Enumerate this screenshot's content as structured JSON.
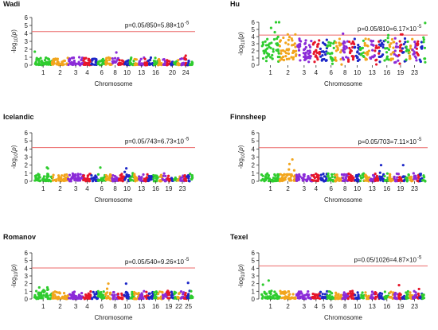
{
  "figure": {
    "xlabel": "Chromosome",
    "ylabel": "-log10(p)",
    "threshold_color": "#ec6a6a",
    "chromosome_palette": [
      "#2ecc2e",
      "#f2a51c",
      "#8b2bd8",
      "#e6162a",
      "#1c27c8"
    ]
  },
  "chart_data": [
    {
      "type": "scatter",
      "subtype": "manhattan",
      "title": "Wadi",
      "threshold_label": "p=0.05/850=5.88×10",
      "threshold_exponent": "-5",
      "threshold": 4.23,
      "ylim": [
        0,
        6
      ],
      "yticks": [
        0,
        1,
        2,
        3,
        4,
        5,
        6
      ],
      "n_chromosomes": 26,
      "xtick_labels": [
        "1",
        "2",
        "3",
        "4",
        "6",
        "8",
        "10",
        "13",
        "16",
        "20",
        "24"
      ],
      "xtick_chromosomes": [
        1,
        2,
        3,
        4,
        6,
        8,
        10,
        13,
        16,
        20,
        24
      ],
      "peaks": [
        {
          "chromosome": 1,
          "value": 1.7
        },
        {
          "chromosome": 8,
          "value": 1.6
        },
        {
          "chromosome": 24,
          "value": 1.2
        }
      ]
    },
    {
      "type": "scatter",
      "subtype": "manhattan",
      "title": "Hu",
      "threshold_label": "p=0.05/810=6.17×10",
      "threshold_exponent": "-5",
      "threshold": 4.21,
      "ylim": [
        0,
        6
      ],
      "yticks": [
        0,
        1,
        2,
        3,
        4,
        5,
        6
      ],
      "n_chromosomes": 26,
      "xtick_labels": [
        "1",
        "2",
        "3",
        "4",
        "6",
        "8",
        "10",
        "13",
        "16",
        "19",
        "23"
      ],
      "xtick_chromosomes": [
        1,
        2,
        3,
        4,
        6,
        8,
        10,
        13,
        16,
        19,
        23
      ],
      "peaks": [
        {
          "chromosome": 1,
          "value": 6.1
        },
        {
          "chromosome": 2,
          "value": 4.3
        },
        {
          "chromosome": 8,
          "value": 4.4
        },
        {
          "chromosome": 16,
          "value": 4.2
        },
        {
          "chromosome": 19,
          "value": 4.3
        },
        {
          "chromosome": 26,
          "value": 5.9
        }
      ]
    },
    {
      "type": "scatter",
      "subtype": "manhattan",
      "title": "Icelandic",
      "threshold_label": "p=0.05/743=6.73×10",
      "threshold_exponent": "-5",
      "threshold": 4.17,
      "ylim": [
        0,
        6
      ],
      "yticks": [
        0,
        1,
        2,
        3,
        4,
        5,
        6
      ],
      "n_chromosomes": 26,
      "xtick_labels": [
        "1",
        "2",
        "3",
        "4",
        "6",
        "8",
        "10",
        "13",
        "16",
        "19",
        "23"
      ],
      "xtick_chromosomes": [
        1,
        2,
        3,
        4,
        6,
        8,
        10,
        13,
        16,
        19,
        23
      ],
      "peaks": [
        {
          "chromosome": 1,
          "value": 1.7
        },
        {
          "chromosome": 6,
          "value": 1.7
        },
        {
          "chromosome": 10,
          "value": 1.6
        }
      ]
    },
    {
      "type": "scatter",
      "subtype": "manhattan",
      "title": "Finnsheep",
      "threshold_label": "p=0.05/703=7.11×10",
      "threshold_exponent": "-5",
      "threshold": 4.15,
      "ylim": [
        0,
        6
      ],
      "yticks": [
        0,
        1,
        2,
        3,
        4,
        5,
        6
      ],
      "n_chromosomes": 26,
      "xtick_labels": [
        "1",
        "2",
        "3",
        "4",
        "6",
        "8",
        "10",
        "13",
        "16",
        "19",
        "23"
      ],
      "xtick_chromosomes": [
        1,
        2,
        3,
        4,
        6,
        8,
        10,
        13,
        16,
        19,
        23
      ],
      "peaks": [
        {
          "chromosome": 2,
          "value": 2.7
        },
        {
          "chromosome": 15,
          "value": 2.0
        },
        {
          "chromosome": 20,
          "value": 2.0
        }
      ]
    },
    {
      "type": "scatter",
      "subtype": "manhattan",
      "title": "Romanov",
      "threshold_label": "p=0.05/540=9.26×10",
      "threshold_exponent": "-5",
      "threshold": 4.03,
      "ylim": [
        0,
        6
      ],
      "yticks": [
        0,
        1,
        2,
        3,
        4,
        5,
        6
      ],
      "n_chromosomes": 26,
      "xtick_labels": [
        "1",
        "2",
        "3",
        "4",
        "6",
        "8",
        "10",
        "13",
        "16",
        "19",
        "22",
        "25"
      ],
      "xtick_chromosomes": [
        1,
        2,
        3,
        4,
        6,
        8,
        10,
        13,
        16,
        19,
        22,
        25
      ],
      "peaks": [
        {
          "chromosome": 1,
          "value": 1.5
        },
        {
          "chromosome": 7,
          "value": 2.0
        },
        {
          "chromosome": 10,
          "value": 2.0
        },
        {
          "chromosome": 25,
          "value": 2.1
        }
      ]
    },
    {
      "type": "scatter",
      "subtype": "manhattan",
      "title": "Texel",
      "threshold_label": "p=0.05/1026=4.87×10",
      "threshold_exponent": "-5",
      "threshold": 4.31,
      "ylim": [
        0,
        6
      ],
      "yticks": [
        0,
        1,
        2,
        3,
        4,
        5,
        6
      ],
      "n_chromosomes": 26,
      "xtick_labels": [
        "1",
        "2",
        "3",
        "4",
        "5",
        "6",
        "8",
        "10",
        "13",
        "16",
        "19",
        "23"
      ],
      "xtick_chromosomes": [
        1,
        2,
        3,
        4,
        5,
        6,
        8,
        10,
        13,
        16,
        19,
        23
      ],
      "peaks": [
        {
          "chromosome": 1,
          "value": 2.4
        },
        {
          "chromosome": 19,
          "value": 1.8
        },
        {
          "chromosome": 24,
          "value": 1.3
        }
      ]
    }
  ]
}
